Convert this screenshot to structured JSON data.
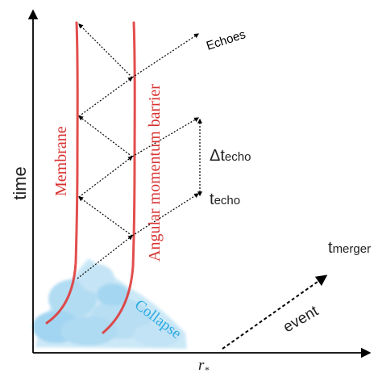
{
  "axes": {
    "y_label": "time",
    "x_label": "r",
    "x_label_sub": "*"
  },
  "labels": {
    "echoes": "Echoes",
    "membrane": "Membrane",
    "barrier": "Angular momentum barrier",
    "collapse": "Collapse",
    "event": "event",
    "delta_t_echo_prefix": "Δt",
    "delta_t_echo_sub": "echo",
    "t_echo_prefix": "t",
    "t_echo_sub": "echo",
    "t_merger_prefix": "t",
    "t_merger_sub": "merger"
  },
  "colors": {
    "worldline": "#e03a3a",
    "label_red": "#d83030",
    "collapse_blue": "#2aaae0",
    "collapse_fill": "#9fd4f0",
    "axis": "#000000",
    "text": "#222222"
  }
}
